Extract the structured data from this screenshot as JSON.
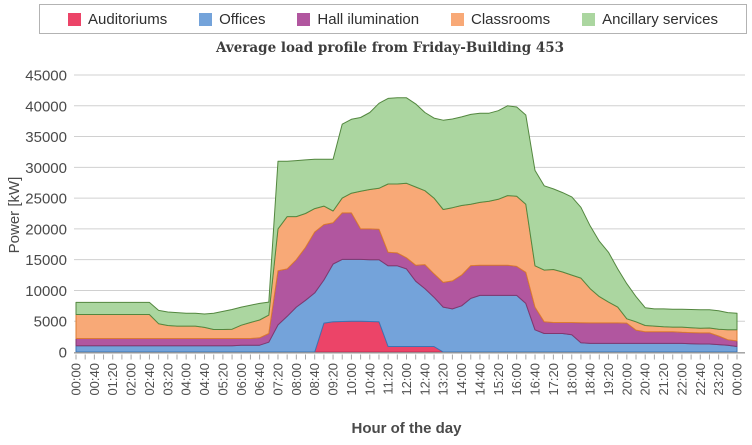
{
  "title": "Average load profile from Friday-Building 453",
  "chart_data": {
    "type": "area",
    "stacked": true,
    "title": "Average load profile from Friday-Building 453",
    "xlabel": "Hour of the day",
    "ylabel": "Power [kW]",
    "ylim": [
      0,
      45000
    ],
    "y_ticks": [
      0,
      5000,
      10000,
      15000,
      20000,
      25000,
      30000,
      35000,
      40000,
      45000
    ],
    "grid": "horizontal",
    "legend_position": "top",
    "x_start_minutes": 0,
    "x_step_minutes": 20,
    "x_tick_every_n_points": 2,
    "x_tick_labels": [
      "00:00",
      "00:40",
      "01:20",
      "02:00",
      "02:40",
      "03:20",
      "04:00",
      "04:40",
      "05:20",
      "06:00",
      "06:40",
      "07:20",
      "08:00",
      "08:40",
      "09:20",
      "10:00",
      "10:40",
      "11:20",
      "12:00",
      "12:40",
      "13:20",
      "14:00",
      "14:40",
      "15:20",
      "16:00",
      "16:40",
      "17:20",
      "18:00",
      "18:40",
      "19:20",
      "20:00",
      "20:40",
      "21:20",
      "22:00",
      "22:40",
      "23:20",
      "00:00"
    ],
    "series": [
      {
        "name": "Auditoriums",
        "color": "#ec4468",
        "stroke": "#c42a52",
        "values": [
          0,
          0,
          0,
          0,
          0,
          0,
          0,
          0,
          0,
          0,
          0,
          0,
          0,
          0,
          0,
          0,
          0,
          0,
          0,
          0,
          0,
          0,
          0,
          0,
          0,
          0,
          0,
          4700,
          4900,
          4950,
          5000,
          5000,
          4950,
          4900,
          900,
          900,
          900,
          900,
          900,
          900,
          0,
          0,
          0,
          0,
          0,
          0,
          0,
          0,
          0,
          0,
          0,
          0,
          0,
          0,
          0,
          0,
          0,
          0,
          0,
          0,
          0,
          0,
          0,
          0,
          0,
          0,
          0,
          0,
          0,
          0,
          0,
          0,
          0
        ]
      },
      {
        "name": "Offices",
        "color": "#74a3da",
        "stroke": "#3d74b3",
        "values": [
          1000,
          1000,
          1000,
          1000,
          1000,
          1000,
          1000,
          1000,
          1000,
          1000,
          1000,
          1000,
          1000,
          1000,
          1000,
          1000,
          1000,
          1000,
          1100,
          1100,
          1100,
          1600,
          4400,
          5800,
          7300,
          8400,
          9600,
          7000,
          9400,
          10100,
          10050,
          10050,
          10050,
          10100,
          13100,
          13100,
          12600,
          10600,
          9400,
          8000,
          7300,
          7000,
          7500,
          8700,
          9200,
          9200,
          9200,
          9200,
          9200,
          7900,
          3600,
          3000,
          3000,
          3000,
          2800,
          1500,
          1400,
          1400,
          1400,
          1400,
          1400,
          1400,
          1400,
          1400,
          1400,
          1400,
          1400,
          1350,
          1300,
          1300,
          1200,
          1100,
          900
        ]
      },
      {
        "name": "Hall ilumination",
        "color": "#b1569f",
        "stroke": "#81386f",
        "values": [
          1200,
          1200,
          1200,
          1200,
          1200,
          1200,
          1200,
          1200,
          1200,
          1200,
          1200,
          1200,
          1200,
          1200,
          1200,
          1200,
          1200,
          1200,
          1100,
          1100,
          1200,
          1400,
          8800,
          7700,
          7700,
          8600,
          9900,
          9000,
          6700,
          7550,
          7550,
          4950,
          5000,
          4950,
          2200,
          2100,
          1800,
          2600,
          3900,
          3800,
          4000,
          4550,
          5000,
          5330,
          4900,
          4900,
          4900,
          4900,
          4700,
          5050,
          3700,
          1900,
          1800,
          1800,
          2000,
          3250,
          3330,
          3330,
          3330,
          3330,
          3300,
          2150,
          1900,
          1900,
          1900,
          1900,
          1800,
          1800,
          1800,
          1800,
          1400,
          900,
          900
        ]
      },
      {
        "name": "Classrooms",
        "color": "#f8a977",
        "stroke": "#dd7b31",
        "values": [
          3900,
          3900,
          3900,
          3900,
          3900,
          3900,
          3900,
          3900,
          3900,
          2400,
          2100,
          2000,
          2000,
          2000,
          1800,
          1450,
          1450,
          1500,
          2150,
          2600,
          2900,
          3000,
          6800,
          8500,
          7000,
          5500,
          3800,
          3000,
          1900,
          2400,
          3200,
          6100,
          6400,
          6650,
          11100,
          11200,
          12100,
          12700,
          12000,
          12300,
          11850,
          11900,
          11300,
          9970,
          10200,
          10400,
          10700,
          11300,
          11400,
          11050,
          6700,
          8400,
          8600,
          8200,
          7700,
          7250,
          5570,
          4270,
          3370,
          2570,
          700,
          1350,
          1000,
          900,
          800,
          750,
          850,
          800,
          750,
          800,
          1100,
          1600,
          1800
        ]
      },
      {
        "name": "Ancillary services",
        "color": "#abd6a0",
        "stroke": "#53873f",
        "values": [
          1950,
          1950,
          1950,
          1950,
          1950,
          1950,
          1950,
          1950,
          1950,
          2150,
          2200,
          2200,
          2100,
          2100,
          2175,
          2650,
          2950,
          3200,
          2950,
          2800,
          2700,
          2100,
          11000,
          9000,
          9100,
          8700,
          8000,
          7600,
          8400,
          12000,
          12000,
          12000,
          12500,
          13800,
          13900,
          14000,
          13900,
          13500,
          12700,
          13000,
          14500,
          14400,
          14400,
          14600,
          14500,
          14300,
          14400,
          14600,
          14500,
          14500,
          15500,
          13700,
          13100,
          12900,
          12700,
          11500,
          10200,
          9000,
          8100,
          6200,
          5700,
          4100,
          2900,
          2800,
          2900,
          2900,
          2900,
          2950,
          3000,
          2950,
          3000,
          2800,
          2700
        ]
      }
    ]
  }
}
